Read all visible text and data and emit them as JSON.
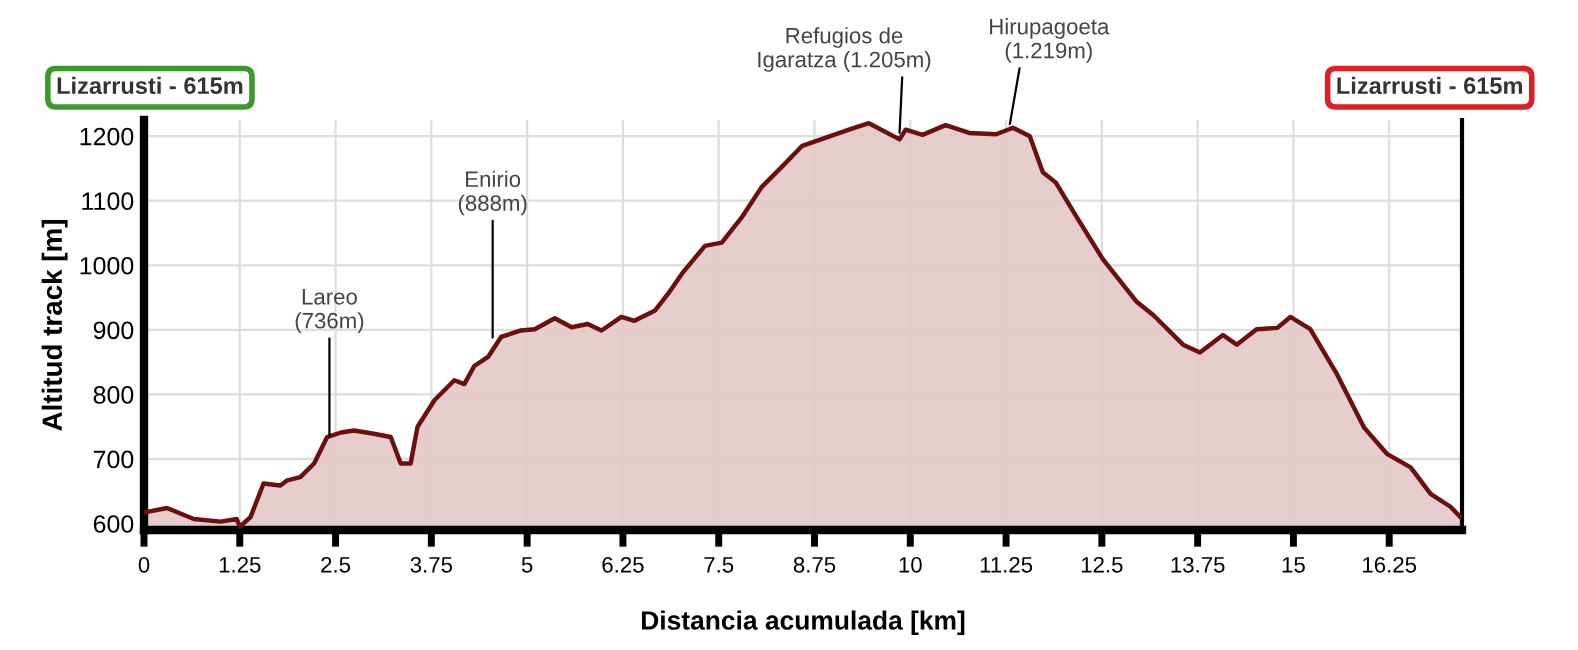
{
  "chart_data": {
    "type": "area",
    "xlabel": "Distancia acumulada [km]",
    "ylabel": "Altitud track [m]",
    "x": [
      0,
      0.3,
      0.65,
      1.0,
      1.21,
      1.25,
      1.39,
      1.56,
      1.78,
      1.87,
      2.04,
      2.22,
      2.39,
      2.57,
      2.74,
      3.0,
      3.22,
      3.35,
      3.48,
      3.57,
      3.79,
      4.05,
      4.18,
      4.31,
      4.49,
      4.66,
      4.92,
      5.1,
      5.36,
      5.58,
      5.79,
      5.97,
      6.23,
      6.4,
      6.67,
      6.84,
      7.02,
      7.32,
      7.54,
      7.8,
      8.06,
      8.32,
      8.59,
      9.2,
      9.46,
      9.86,
      9.94,
      10.16,
      10.46,
      10.77,
      11.12,
      11.34,
      11.56,
      11.73,
      11.9,
      12.16,
      12.51,
      12.95,
      13.17,
      13.56,
      13.78,
      14.08,
      14.26,
      14.52,
      14.79,
      14.96,
      15.22,
      15.57,
      15.92,
      16.22,
      16.53,
      16.79,
      17.05,
      17.18
    ],
    "series": [
      {
        "color": "#6b0f0f",
        "values": [
          617,
          624,
          607,
          603,
          607,
          595,
          610,
          662,
          659,
          667,
          672,
          693,
          734,
          741,
          744,
          739,
          734,
          693,
          693,
          750,
          791,
          822,
          816,
          844,
          858,
          889,
          899,
          901,
          918,
          904,
          909,
          899,
          920,
          914,
          930,
          956,
          987,
          1030,
          1035,
          1074,
          1121,
          1152,
          1185,
          1210,
          1220,
          1195,
          1210,
          1202,
          1217,
          1205,
          1203,
          1213,
          1200,
          1144,
          1128,
          1077,
          1010,
          944,
          923,
          877,
          865,
          892,
          877,
          901,
          903,
          920,
          901,
          831,
          749,
          708,
          687,
          646,
          626,
          610
        ]
      }
    ],
    "xlim": [
      0,
      17.2
    ],
    "ylim": [
      590,
      1225
    ],
    "xticks": [
      0,
      1.25,
      2.5,
      3.75,
      5,
      6.25,
      7.5,
      8.75,
      10,
      11.25,
      12.5,
      13.75,
      15,
      16.25
    ],
    "yticks": [
      600,
      700,
      800,
      900,
      1000,
      1100,
      1200
    ],
    "grid": true,
    "annotations": [
      {
        "text": "Lareo\n(736m)",
        "x": 2.42,
        "y": 736
      },
      {
        "text": "Enirio\n(888m)",
        "x": 4.55,
        "y": 888
      },
      {
        "text": "Refugios de\nIgaratza (1.205m)",
        "x": 9.86,
        "y": 1205
      },
      {
        "text": "Hirupagoeta\n(1.219m)",
        "x": 11.3,
        "y": 1219
      },
      "Lizarrusti - 615m",
      "Lizarrusti - 615m"
    ]
  }
}
